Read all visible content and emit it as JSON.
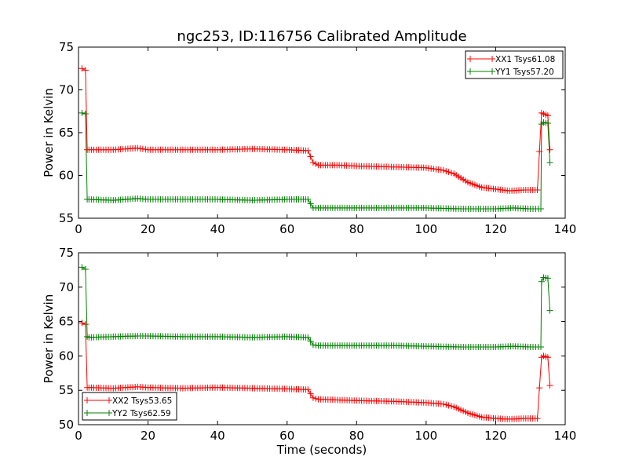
{
  "chart_data": [
    {
      "type": "line",
      "title": "ngc253, ID:116756 Calibrated Amplitude",
      "xlabel": "",
      "ylabel": "Power in Kelvin",
      "xlim": [
        0,
        140
      ],
      "ylim": [
        55,
        75
      ],
      "xticks": [
        "0",
        "20",
        "40",
        "60",
        "80",
        "100",
        "120",
        "140"
      ],
      "yticks": [
        "55",
        "60",
        "65",
        "70",
        "75"
      ],
      "legend_position": "top-right",
      "series": [
        {
          "name": "XX1 Tsys61.08",
          "color": "#ff0000",
          "x": [
            1,
            2,
            2.5,
            3,
            10,
            17,
            20,
            30,
            40,
            50,
            60,
            66,
            67.5,
            69,
            75,
            80,
            90,
            100,
            105,
            108,
            112,
            116,
            120,
            124,
            128,
            132,
            133.2,
            133.8,
            135,
            135.6
          ],
          "y": [
            72.5,
            72.3,
            63.0,
            63.0,
            63.0,
            63.2,
            63.0,
            63.0,
            63.0,
            63.1,
            63.0,
            62.9,
            61.5,
            61.2,
            61.2,
            61.1,
            61.0,
            60.9,
            60.6,
            60.2,
            59.2,
            58.6,
            58.4,
            58.2,
            58.3,
            58.3,
            67.3,
            67.2,
            67.0,
            63.0
          ]
        },
        {
          "name": "YY1 Tsys57.20",
          "color": "#008000",
          "x": [
            1,
            2,
            2.5,
            3,
            10,
            17,
            20,
            30,
            40,
            50,
            60,
            66,
            67.5,
            69,
            80,
            90,
            100,
            110,
            120,
            125,
            130,
            133,
            133.2,
            133.8,
            135,
            135.6
          ],
          "y": [
            67.3,
            67.2,
            57.2,
            57.2,
            57.1,
            57.3,
            57.2,
            57.2,
            57.2,
            57.1,
            57.2,
            57.2,
            56.2,
            56.2,
            56.2,
            56.2,
            56.2,
            56.1,
            56.1,
            56.2,
            56.1,
            56.1,
            66.0,
            66.2,
            66.1,
            61.5
          ]
        }
      ]
    },
    {
      "type": "line",
      "title": "",
      "xlabel": "Time (seconds)",
      "ylabel": "Power in Kelvin",
      "xlim": [
        0,
        140
      ],
      "ylim": [
        50,
        75
      ],
      "xticks": [
        "0",
        "20",
        "40",
        "60",
        "80",
        "100",
        "120",
        "140"
      ],
      "yticks": [
        "50",
        "55",
        "60",
        "65",
        "70",
        "75"
      ],
      "legend_position": "bottom-left",
      "series": [
        {
          "name": "XX2 Tsys53.65",
          "color": "#ff0000",
          "x": [
            1,
            2,
            2.5,
            3,
            10,
            17,
            20,
            30,
            40,
            50,
            60,
            66,
            67.5,
            69,
            80,
            90,
            100,
            105,
            108,
            112,
            116,
            120,
            124,
            128,
            132,
            133.2,
            133.8,
            135,
            135.6
          ],
          "y": [
            64.8,
            64.6,
            55.4,
            55.4,
            55.3,
            55.5,
            55.4,
            55.3,
            55.4,
            55.3,
            55.2,
            55.1,
            53.9,
            53.7,
            53.5,
            53.4,
            53.2,
            53.0,
            52.6,
            51.7,
            51.1,
            50.9,
            50.8,
            50.9,
            50.9,
            59.8,
            60.0,
            59.8,
            55.7
          ]
        },
        {
          "name": "YY2 Tsys62.59",
          "color": "#008000",
          "x": [
            1,
            2,
            2.5,
            3,
            10,
            17,
            20,
            30,
            40,
            50,
            60,
            66,
            67.5,
            69,
            80,
            90,
            100,
            110,
            120,
            125,
            130,
            133,
            133.2,
            133.8,
            135,
            135.6
          ],
          "y": [
            72.9,
            72.6,
            62.8,
            62.7,
            62.8,
            62.9,
            62.9,
            62.8,
            62.8,
            62.7,
            62.8,
            62.7,
            61.6,
            61.5,
            61.5,
            61.5,
            61.4,
            61.3,
            61.3,
            61.4,
            61.3,
            61.3,
            70.8,
            71.4,
            71.3,
            66.6
          ]
        }
      ]
    }
  ]
}
